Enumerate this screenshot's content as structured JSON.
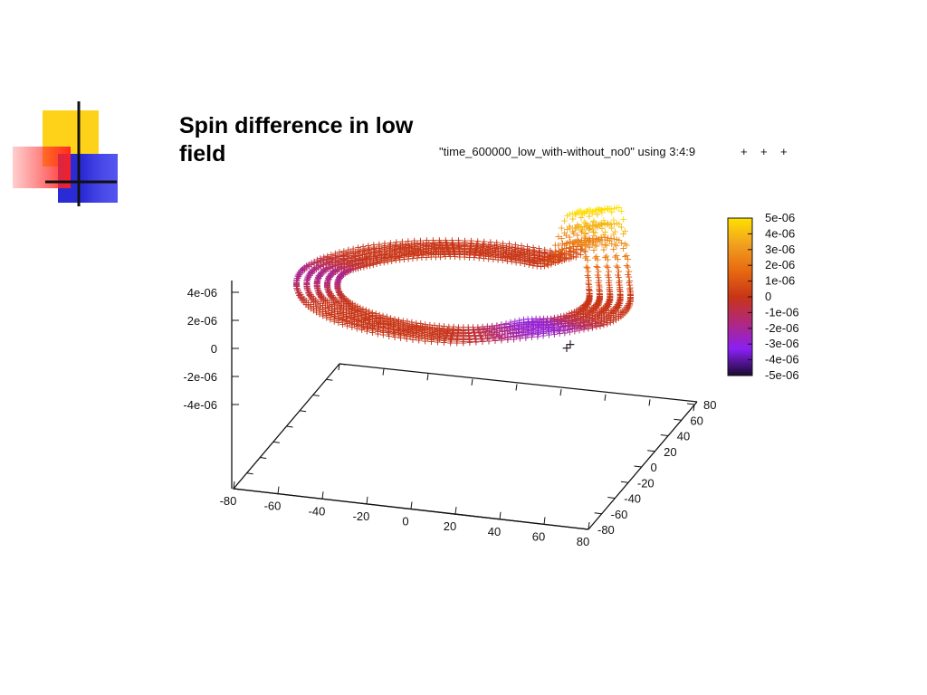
{
  "slide": {
    "title": "Spin difference in low field"
  },
  "chart_data": {
    "type": "scatter",
    "plot_title": "\"time_600000_low_with-without_no0\" using 3:4:9",
    "legend_markers": [
      "+",
      "+",
      "+"
    ],
    "x_ticks": [
      "-80",
      "-60",
      "-40",
      "-20",
      "0",
      "20",
      "40",
      "60",
      "80"
    ],
    "y_ticks": [
      "-80",
      "-60",
      "-40",
      "-20",
      "0",
      "20",
      "40",
      "60",
      "80"
    ],
    "z_ticks": [
      "4e-06",
      "2e-06",
      "0",
      "-2e-06",
      "-4e-06"
    ],
    "xlim": [
      -80,
      80
    ],
    "ylim": [
      -80,
      80
    ],
    "zlim": [
      -5e-06,
      5e-06
    ],
    "colorbar_ticks": [
      "5e-06",
      "4e-06",
      "3e-06",
      "2e-06",
      "1e-06",
      "0",
      "-1e-06",
      "-2e-06",
      "-3e-06",
      "-4e-06",
      "-5e-06"
    ],
    "colorbar_range": [
      -5e-06,
      5e-06
    ],
    "colormap": [
      "#1a0a2e",
      "#8a1ff5",
      "#b0287f",
      "#c83516",
      "#e86a10",
      "#f0a020",
      "#ffe000"
    ],
    "grid": false,
    "legend_position": "top-right",
    "ring": {
      "center": [
        0,
        0
      ],
      "radius": 55,
      "base_value": 0,
      "peaks": [
        {
          "angle_deg": 20,
          "value": 5e-06
        },
        {
          "angle_deg": 35,
          "value": 4e-06
        }
      ],
      "dips": [
        {
          "angle_deg": -60,
          "value": -3e-06
        },
        {
          "angle_deg": 170,
          "value": -2e-06
        }
      ]
    },
    "colors": {
      "ring_main": "#c83a12",
      "ring_dark": "#a8280c",
      "ring_low": "#9b1fe8",
      "ring_high": "#f5c418"
    }
  }
}
